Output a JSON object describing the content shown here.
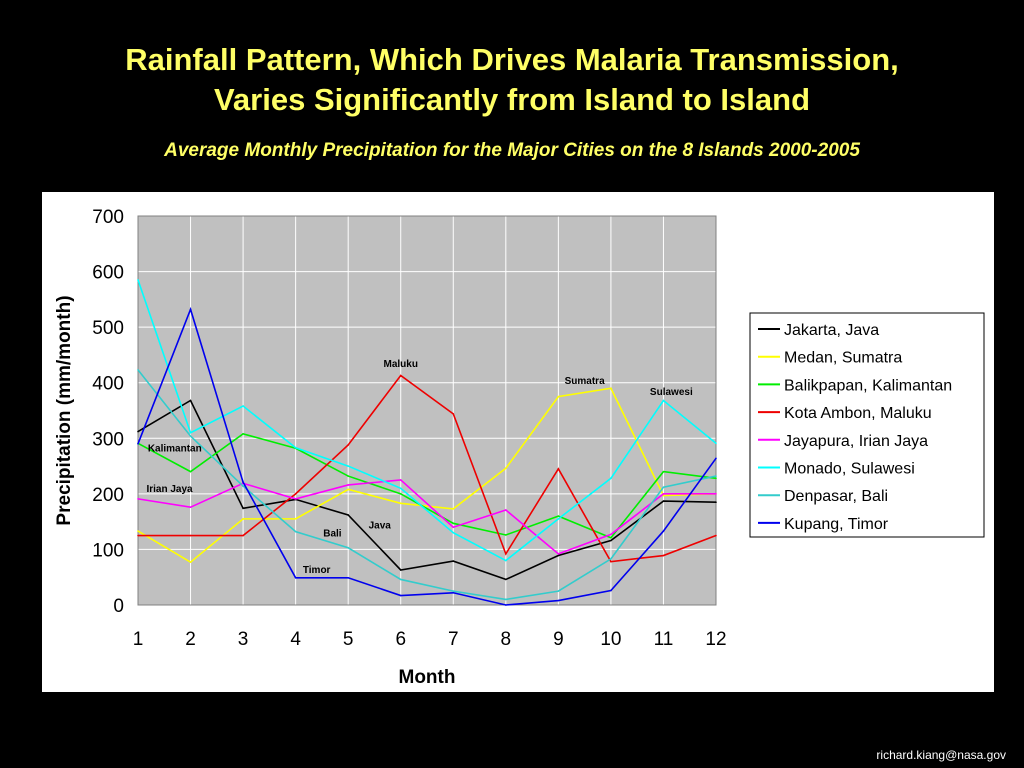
{
  "slide": {
    "title_line1": "Rainfall Pattern, Which Drives Malaria Transmission,",
    "title_line2": "Varies Significantly from Island to Island",
    "subtitle": "Average Monthly Precipitation for the Major Cities on the 8 Islands 2000-2005",
    "footer": "richard.kiang@nasa.gov"
  },
  "colors": {
    "background": "#000000",
    "title": "#ffff66",
    "plot_area": "#c0c0c0"
  },
  "chart_data": {
    "type": "line",
    "title": "",
    "xlabel": "Month",
    "ylabel": "Precipitation (mm/month)",
    "x": [
      1,
      2,
      3,
      4,
      5,
      6,
      7,
      8,
      9,
      10,
      11,
      12
    ],
    "ylim": [
      0,
      700
    ],
    "yticks": [
      0,
      100,
      200,
      300,
      400,
      500,
      600,
      700
    ],
    "grid": true,
    "legend_position": "right",
    "series": [
      {
        "name": "Jakarta, Java",
        "color": "#000000",
        "values": [
          312,
          368,
          174,
          190,
          162,
          63,
          79,
          46,
          89,
          116,
          187,
          185
        ]
      },
      {
        "name": "Medan, Sumatra",
        "color": "#ffff00",
        "values": [
          133,
          77,
          155,
          155,
          208,
          183,
          173,
          246,
          375,
          390,
          197,
          200
        ]
      },
      {
        "name": "Balikpapan, Kalimantan",
        "color": "#00ee00",
        "values": [
          291,
          240,
          308,
          282,
          232,
          200,
          147,
          126,
          160,
          121,
          240,
          228
        ]
      },
      {
        "name": "Kota Ambon, Maluku",
        "color": "#ee0000",
        "values": [
          125,
          125,
          125,
          200,
          288,
          413,
          344,
          92,
          245,
          78,
          89,
          125
        ]
      },
      {
        "name": "Jayapura, Irian Jaya",
        "color": "#ff00ff",
        "values": [
          191,
          176,
          219,
          191,
          216,
          225,
          140,
          171,
          92,
          127,
          200,
          200
        ]
      },
      {
        "name": "Monado, Sulawesi",
        "color": "#00ffff",
        "values": [
          585,
          310,
          358,
          283,
          250,
          210,
          130,
          80,
          155,
          228,
          368,
          291
        ]
      },
      {
        "name": "Denpasar, Bali",
        "color": "#33cccc",
        "values": [
          423,
          304,
          214,
          132,
          103,
          46,
          25,
          10,
          25,
          83,
          212,
          232
        ]
      },
      {
        "name": "Kupang, Timor",
        "color": "#0000ee",
        "values": [
          290,
          532,
          221,
          49,
          49,
          17,
          22,
          0,
          8,
          26,
          133,
          264
        ]
      }
    ],
    "annotations": [
      {
        "text": "Maluku",
        "x": 6,
        "y": 428
      },
      {
        "text": "Sumatra",
        "x": 9.5,
        "y": 398
      },
      {
        "text": "Sulawesi",
        "x": 11.15,
        "y": 378
      },
      {
        "text": "Kalimantan",
        "x": 1.7,
        "y": 276
      },
      {
        "text": "Irian Jaya",
        "x": 1.6,
        "y": 203
      },
      {
        "text": "Java",
        "x": 5.6,
        "y": 138
      },
      {
        "text": "Bali",
        "x": 4.7,
        "y": 123
      },
      {
        "text": "Timor",
        "x": 4.4,
        "y": 58
      }
    ]
  }
}
